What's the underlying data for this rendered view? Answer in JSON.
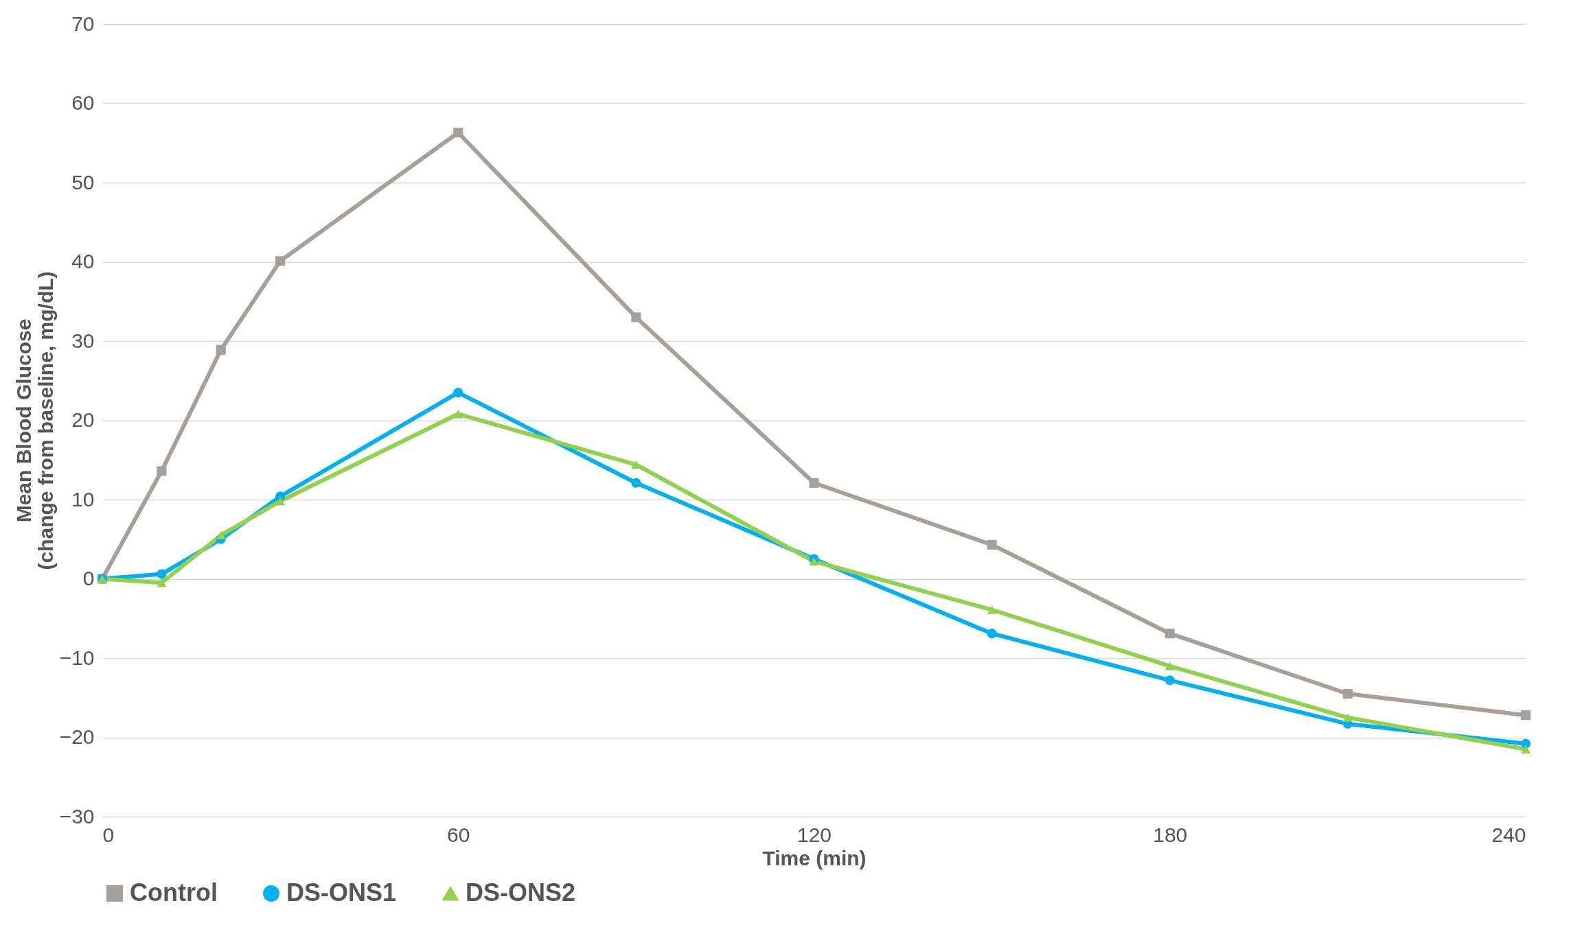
{
  "chart_data": {
    "type": "line",
    "xlabel": "Time (min)",
    "ylabel": "Mean Blood Glucose\n(change from baseline, mg/dL)",
    "xlim": [
      0,
      240
    ],
    "xticks": [
      0,
      60,
      120,
      180,
      240
    ],
    "ylim": [
      -30,
      70
    ],
    "yticks": [
      -30,
      -20,
      -10,
      0,
      10,
      20,
      30,
      40,
      50,
      60,
      70
    ],
    "grid": "y",
    "legend": "bottom",
    "x": [
      0,
      10,
      20,
      30,
      60,
      90,
      120,
      150,
      180,
      210,
      240
    ],
    "series": [
      {
        "name": "Control",
        "color": "#a5a09c",
        "marker": "square",
        "values": [
          0,
          13.6,
          28.9,
          40.1,
          56.3,
          33.0,
          12.1,
          4.3,
          -6.9,
          -14.5,
          -17.2
        ]
      },
      {
        "name": "DS-ONS1",
        "color": "#00b0f0",
        "marker": "circle",
        "values": [
          0,
          0.6,
          5.0,
          10.4,
          23.5,
          12.1,
          2.5,
          -6.9,
          -12.8,
          -18.3,
          -20.8
        ]
      },
      {
        "name": "DS-ONS2",
        "color": "#92d050",
        "marker": "triangle",
        "values": [
          0,
          -0.5,
          5.5,
          9.8,
          20.8,
          14.4,
          2.2,
          -3.9,
          -11.0,
          -17.5,
          -21.5
        ]
      }
    ]
  }
}
